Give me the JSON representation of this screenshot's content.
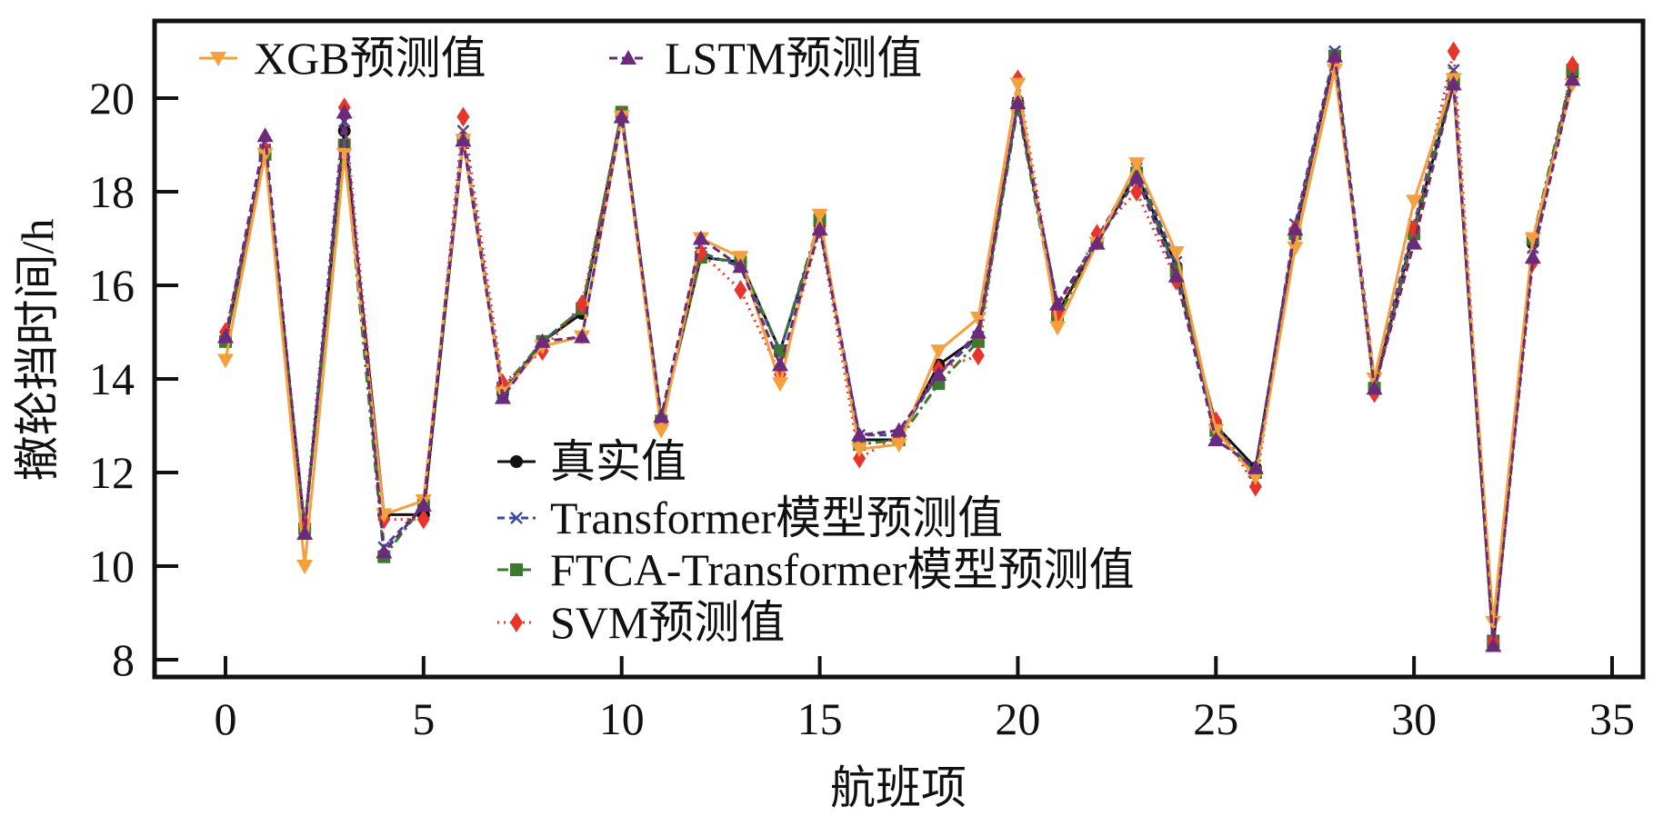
{
  "chart_data": {
    "type": "line",
    "title": "",
    "xlabel": "航班项",
    "ylabel": "撤轮挡时间/h",
    "xlim": [
      -1.8,
      35.9
    ],
    "ylim": [
      7.6,
      21.5
    ],
    "xticks": [
      0,
      5,
      10,
      15,
      20,
      25,
      30,
      35
    ],
    "yticks": [
      8,
      10,
      12,
      14,
      16,
      18,
      20
    ],
    "grid": false,
    "x": [
      0,
      1,
      2,
      3,
      4,
      5,
      6,
      7,
      8,
      9,
      10,
      11,
      12,
      13,
      14,
      15,
      16,
      17,
      18,
      19,
      20,
      21,
      22,
      23,
      24,
      25,
      26,
      27,
      28,
      29,
      30,
      31,
      32,
      33,
      34
    ],
    "series": [
      {
        "name": "真实值",
        "color": "#111111",
        "marker": "circle",
        "dash": "",
        "values": [
          14.8,
          18.9,
          10.8,
          19.3,
          11.1,
          11.1,
          19.1,
          13.7,
          14.8,
          15.4,
          19.7,
          13.1,
          16.6,
          16.5,
          14.6,
          17.3,
          12.7,
          12.7,
          14.3,
          14.9,
          19.9,
          15.4,
          16.9,
          18.4,
          16.4,
          13.0,
          12.1,
          17.1,
          20.9,
          13.8,
          17.2,
          20.3,
          8.3,
          16.9,
          20.5
        ]
      },
      {
        "name": "Transformer模型预测值",
        "color": "#3d4a9c",
        "marker": "x",
        "dash": "8,5",
        "values": [
          14.9,
          18.9,
          10.8,
          19.5,
          10.4,
          11.3,
          19.3,
          13.7,
          14.8,
          15.5,
          19.6,
          13.1,
          16.7,
          16.4,
          14.6,
          17.3,
          12.8,
          12.8,
          14.1,
          14.9,
          19.9,
          15.6,
          17.0,
          18.5,
          16.5,
          12.8,
          12.0,
          17.3,
          21.0,
          14.0,
          17.3,
          20.6,
          8.3,
          16.8,
          20.5
        ]
      },
      {
        "name": "FTCA-Transformer模型预测值",
        "color": "#3b7a2c",
        "marker": "square",
        "dash": "12,5,3,5",
        "values": [
          14.8,
          18.8,
          10.8,
          19.0,
          10.2,
          11.3,
          19.1,
          13.8,
          14.8,
          15.5,
          19.7,
          13.1,
          16.6,
          16.5,
          14.6,
          17.4,
          12.6,
          12.7,
          13.9,
          14.8,
          19.8,
          15.3,
          16.9,
          18.4,
          16.3,
          12.9,
          12.0,
          17.1,
          20.9,
          13.8,
          17.1,
          20.4,
          8.4,
          17.0,
          20.6
        ]
      },
      {
        "name": "SVM预测值",
        "color": "#e8352c",
        "marker": "diamond",
        "dash": "2,5",
        "values": [
          15.0,
          18.9,
          10.9,
          19.8,
          11.0,
          11.0,
          19.6,
          13.9,
          14.6,
          15.6,
          19.6,
          13.0,
          16.7,
          15.9,
          14.1,
          17.2,
          12.3,
          12.8,
          14.2,
          14.5,
          20.4,
          15.4,
          17.1,
          18.0,
          16.1,
          13.1,
          11.7,
          17.2,
          20.8,
          13.7,
          17.2,
          21.0,
          8.4,
          16.5,
          20.7
        ]
      },
      {
        "name": "XGB预测值",
        "color": "#f5a03c",
        "marker": "triangle-down",
        "dash": "",
        "values": [
          14.4,
          18.8,
          10.0,
          18.8,
          11.1,
          11.4,
          19.1,
          13.7,
          14.7,
          14.9,
          19.6,
          12.9,
          17.0,
          16.6,
          13.9,
          17.5,
          12.5,
          12.6,
          14.6,
          15.3,
          20.3,
          15.1,
          16.9,
          18.6,
          16.7,
          12.9,
          11.9,
          16.8,
          20.6,
          14.0,
          17.8,
          20.4,
          8.8,
          17.0,
          20.3
        ]
      },
      {
        "name": "LSTM预测值",
        "color": "#6b2a7c",
        "marker": "triangle-up",
        "dash": "9,5",
        "values": [
          14.9,
          19.2,
          10.7,
          19.7,
          10.3,
          11.3,
          19.1,
          13.6,
          14.8,
          14.9,
          19.6,
          13.2,
          17.0,
          16.4,
          14.3,
          17.2,
          12.8,
          12.9,
          14.1,
          15.0,
          19.9,
          15.6,
          16.9,
          18.3,
          16.2,
          12.7,
          12.1,
          17.2,
          20.9,
          13.8,
          16.9,
          20.3,
          8.3,
          16.6,
          20.4
        ]
      }
    ],
    "legends": [
      {
        "placement": "top-left",
        "entries": [
          "XGB预测值",
          "LSTM预测值"
        ]
      },
      {
        "placement": "lower-center",
        "entries": [
          "真实值",
          "Transformer模型预测值",
          "FTCA-Transformer模型预测值",
          "SVM预测值"
        ]
      }
    ]
  }
}
